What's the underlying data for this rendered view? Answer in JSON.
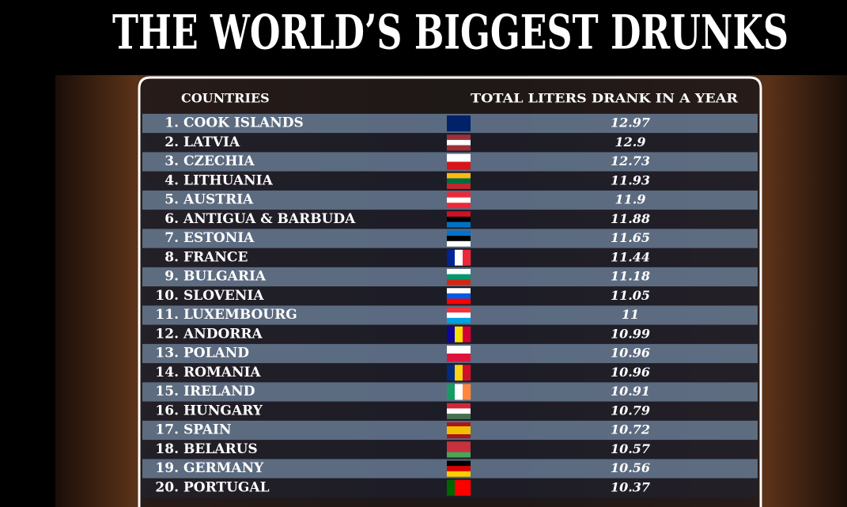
{
  "title": "THE WORLD’S BIGGEST DRUNKS",
  "table": {
    "header": [
      "COUNTRIES",
      "TOTAL LITERS DRANK IN A YEAR"
    ],
    "rows": [
      [
        "1.",
        "COOK ISLANDS",
        12.97
      ],
      [
        "2.",
        "LATVIA",
        12.9
      ],
      [
        "3.",
        "CZECHIA",
        12.73
      ],
      [
        "4.",
        "LITHUANIA",
        11.93
      ],
      [
        "5.",
        "AUSTRIA",
        11.9
      ],
      [
        "6.",
        "ANTIGUA & BARBUDA",
        11.88
      ],
      [
        "7.",
        "ESTONIA",
        11.65
      ],
      [
        "8.",
        "FRANCE",
        11.44
      ],
      [
        "9.",
        "BULGARIA",
        11.18
      ],
      [
        "10.",
        "SLOVENIA",
        11.05
      ],
      [
        "11.",
        "LUXEMBOURG",
        11
      ],
      [
        "12.",
        "ANDORRA",
        10.99
      ],
      [
        "13.",
        "POLAND",
        10.96
      ],
      [
        "14.",
        "ROMANIA",
        10.96
      ],
      [
        "15.",
        "IRELAND",
        10.91
      ],
      [
        "16.",
        "HUNGARY",
        10.79
      ],
      [
        "17.",
        "SPAIN",
        10.72
      ],
      [
        "18.",
        "BELARUS",
        10.57
      ],
      [
        "19.",
        "GERMANY",
        10.56
      ],
      [
        "20.",
        "PORTUGAL",
        10.37
      ]
    ]
  }
}
